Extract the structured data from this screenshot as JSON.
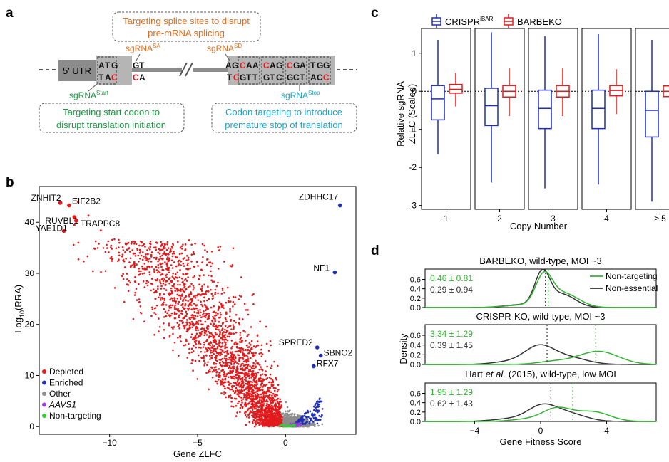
{
  "panel_labels": {
    "a": "a",
    "b": "b",
    "c": "c",
    "d": "d"
  },
  "panel_a": {
    "top_box": [
      "Targeting splice sites to disrupt",
      "pre-mRNA splicing"
    ],
    "bottom_left_box": [
      "Targeting start codon to",
      "disrupt translation initiation"
    ],
    "bottom_right_box": [
      "Codon targeting to introduce",
      "premature stop of translation"
    ],
    "utr_label": "5′ UTR",
    "sgrna": "sgRNA",
    "sup_start": "Start",
    "sup_sa": "SA",
    "sup_sd": "SD",
    "sup_stop": "Stop",
    "start_top": [
      "A",
      "T",
      "G"
    ],
    "start_bottom": [
      "T",
      "A",
      "C"
    ],
    "sa_top": [
      "G",
      "T"
    ],
    "sa_bottom": [
      "C",
      "A"
    ],
    "sd_top": [
      "A",
      "G"
    ],
    "sd_bottom": [
      "T",
      "C"
    ],
    "codons_top": [
      "CAA",
      "CAG",
      "CGA",
      "TGG"
    ],
    "codons_bottom": [
      "GTT",
      "GTC",
      "GCT",
      "ACC"
    ],
    "colors": {
      "orange": "#e06c1e",
      "green": "#1a9641",
      "cyan": "#1aa3c9",
      "red_base": "#e31a1c",
      "grey": "#b5b5b5",
      "dark_grey": "#8c8c8c"
    }
  },
  "chart_data": [
    {
      "panel": "b",
      "type": "scatter",
      "xlabel": "Gene ZLFC",
      "ylabel": "-Log",
      "ylabel_sub": "10",
      "ylabel_tail": "(RRA)",
      "xlim": [
        -14,
        4
      ],
      "ylim": [
        -1.5,
        47
      ],
      "xticks": [
        -10,
        -5,
        0
      ],
      "xtick_labels": [
        "−10",
        "−5",
        "0"
      ],
      "yticks": [
        0,
        10,
        20,
        30,
        40
      ],
      "yticks_labels": [
        "0",
        "10",
        "20",
        "30",
        "40"
      ],
      "legend": [
        {
          "label": "Depleted",
          "color": "#e31a1c"
        },
        {
          "label": "Enriched",
          "color": "#1f2db5"
        },
        {
          "label": "Other",
          "color": "#8c8c8c"
        },
        {
          "label": "AAVS1",
          "color": "#9b3fd6",
          "italic": true
        },
        {
          "label": "Non-targeting",
          "color": "#33cc33"
        }
      ],
      "legend_placement": "bottom-left",
      "labeled_points": [
        {
          "label": "ZNHIT2",
          "x": -12.8,
          "y": 43.8,
          "group": "Depleted"
        },
        {
          "label": "EIF2B2",
          "x": -12.3,
          "y": 43.3,
          "group": "Depleted"
        },
        {
          "label": "RUVBL1",
          "x": -12.0,
          "y": 41.0,
          "group": "Depleted"
        },
        {
          "label": "YAE1D1",
          "x": -12.6,
          "y": 38.3,
          "group": "Depleted"
        },
        {
          "label": "TRAPPC8",
          "x": -11.9,
          "y": 40.3,
          "group": "Depleted"
        },
        {
          "label": "ZDHHC17",
          "x": 3.1,
          "y": 43.3,
          "group": "Enriched"
        },
        {
          "label": "NF1",
          "x": 2.8,
          "y": 30.2,
          "group": "Enriched"
        },
        {
          "label": "SPRED2",
          "x": 1.8,
          "y": 15.5,
          "group": "Enriched"
        },
        {
          "label": "SBNO2",
          "x": 2.0,
          "y": 13.9,
          "group": "Enriched"
        },
        {
          "label": "RFX7",
          "x": 1.6,
          "y": 11.8,
          "group": "Enriched"
        }
      ],
      "extra_red_points": [
        [
          -12.0,
          39.5
        ],
        [
          -11.2,
          41.3
        ],
        [
          -11.8,
          44.0
        ],
        [
          -10.5,
          38.4
        ]
      ]
    },
    {
      "panel": "c",
      "type": "box",
      "xlabel": "Copy Number",
      "ylabel": [
        "Relative sgRNA",
        "ZLFC (Scaled)"
      ],
      "ylim": [
        -3.1,
        1.65
      ],
      "yticks": [
        -3,
        -2,
        -1,
        0,
        1
      ],
      "ytick_labels": [
        "-3",
        "-2",
        "-1",
        "0",
        "1"
      ],
      "categories": [
        "1",
        "2",
        "3",
        "4",
        "≥ 5"
      ],
      "legend_placement": "top",
      "series": [
        {
          "name": "CRISPR",
          "name_sup": "iBAR",
          "color": "#1f2db5",
          "boxes": [
            {
              "min": -1.65,
              "q1": -0.75,
              "median": -0.2,
              "q3": 0.15,
              "max": 1.35
            },
            {
              "min": -2.4,
              "q1": -0.9,
              "median": -0.38,
              "q3": 0.08,
              "max": 1.55
            },
            {
              "min": -2.55,
              "q1": -0.98,
              "median": -0.45,
              "q3": 0.03,
              "max": 1.45
            },
            {
              "min": -2.45,
              "q1": -0.98,
              "median": -0.45,
              "q3": 0.03,
              "max": 1.5
            },
            {
              "min": -2.9,
              "q1": -1.2,
              "median": -0.5,
              "q3": 0.0,
              "max": 1.35
            }
          ]
        },
        {
          "name": "BARBEKO",
          "color": "#e31a1c",
          "boxes": [
            {
              "min": -0.4,
              "q1": -0.05,
              "median": 0.05,
              "q3": 0.18,
              "max": 0.48
            },
            {
              "min": -0.65,
              "q1": -0.15,
              "median": 0.0,
              "q3": 0.15,
              "max": 0.6
            },
            {
              "min": -0.65,
              "q1": -0.15,
              "median": 0.0,
              "q3": 0.15,
              "max": 0.6
            },
            {
              "min": -0.6,
              "q1": -0.12,
              "median": 0.02,
              "q3": 0.15,
              "max": 0.58
            },
            {
              "min": -0.58,
              "q1": -0.14,
              "median": 0.0,
              "q3": 0.14,
              "max": 0.58
            }
          ]
        }
      ]
    },
    {
      "panel": "d",
      "type": "line",
      "subtype": "density",
      "xlabel": "Gene Fitness Score",
      "ylabel": "Density",
      "xlim": [
        -7,
        7
      ],
      "ylim": [
        0,
        0.82
      ],
      "xticks": [
        -4,
        0,
        4
      ],
      "xtick_labels": [
        "−4",
        "0",
        "4"
      ],
      "yticks": [
        0.0,
        0.2,
        0.4,
        0.6
      ],
      "ytick_labels": [
        "0.0",
        "0.2",
        "0.4",
        "0.6"
      ],
      "legend": [
        {
          "label": "Non-targeting",
          "color": "#33b233"
        },
        {
          "label": "Non-essential",
          "color": "#333333"
        }
      ],
      "legend_placement": "top-right",
      "panels": [
        {
          "title": "BARBEKO, wild-type, MOI ~3",
          "stat_nontargeting": "0.46 ± 0.81",
          "stat_nonessential": "0.29 ± 0.94",
          "mean_nontargeting": 0.46,
          "mean_nonessential": 0.29,
          "nontargeting": [
            {
              "amp": 0.62,
              "mu": 0.2,
              "sd": 0.5
            },
            {
              "amp": 0.3,
              "mu": 1.4,
              "sd": 0.9
            },
            {
              "amp": 0.05,
              "mu": -1.2,
              "sd": 1.0
            }
          ],
          "nonessential": [
            {
              "amp": 0.7,
              "mu": 0.1,
              "sd": 0.45
            },
            {
              "amp": 0.28,
              "mu": 1.3,
              "sd": 0.8
            },
            {
              "amp": 0.06,
              "mu": -1.2,
              "sd": 1.0
            }
          ]
        },
        {
          "title_pre": "CRISPR-KO, wild-type, MOI ~3",
          "title": "CRISPR-KO, wild-type, MOI ~3",
          "stat_nontargeting": "3.34 ± 1.29",
          "stat_nonessential": "0.39 ± 1.45",
          "mean_nontargeting": 3.34,
          "mean_nonessential": 0.39,
          "nontargeting": [
            {
              "amp": 0.27,
              "mu": 3.5,
              "sd": 1.2
            },
            {
              "amp": 0.06,
              "mu": 0.8,
              "sd": 1.0
            }
          ],
          "nonessential": [
            {
              "amp": 0.36,
              "mu": -0.1,
              "sd": 0.9
            },
            {
              "amp": 0.14,
              "mu": 1.7,
              "sd": 1.1
            },
            {
              "amp": 0.05,
              "mu": -2.0,
              "sd": 1.0
            }
          ]
        },
        {
          "title_author": "Hart",
          "title_etal": "et al.",
          "title_rest": "(2015), wild-type, low MOI",
          "stat_nontargeting": "1.95 ± 1.29",
          "stat_nonessential": "0.62 ± 1.43",
          "mean_nontargeting": 1.95,
          "mean_nonessential": 0.62,
          "nontargeting": [
            {
              "amp": 0.28,
              "mu": 1.0,
              "sd": 0.9
            },
            {
              "amp": 0.2,
              "mu": 3.2,
              "sd": 1.0
            },
            {
              "amp": 0.04,
              "mu": -1.0,
              "sd": 0.9
            }
          ],
          "nonessential": [
            {
              "amp": 0.33,
              "mu": 0.1,
              "sd": 0.9
            },
            {
              "amp": 0.15,
              "mu": 1.8,
              "sd": 1.0
            },
            {
              "amp": 0.05,
              "mu": -2.0,
              "sd": 1.0
            }
          ]
        }
      ]
    }
  ]
}
